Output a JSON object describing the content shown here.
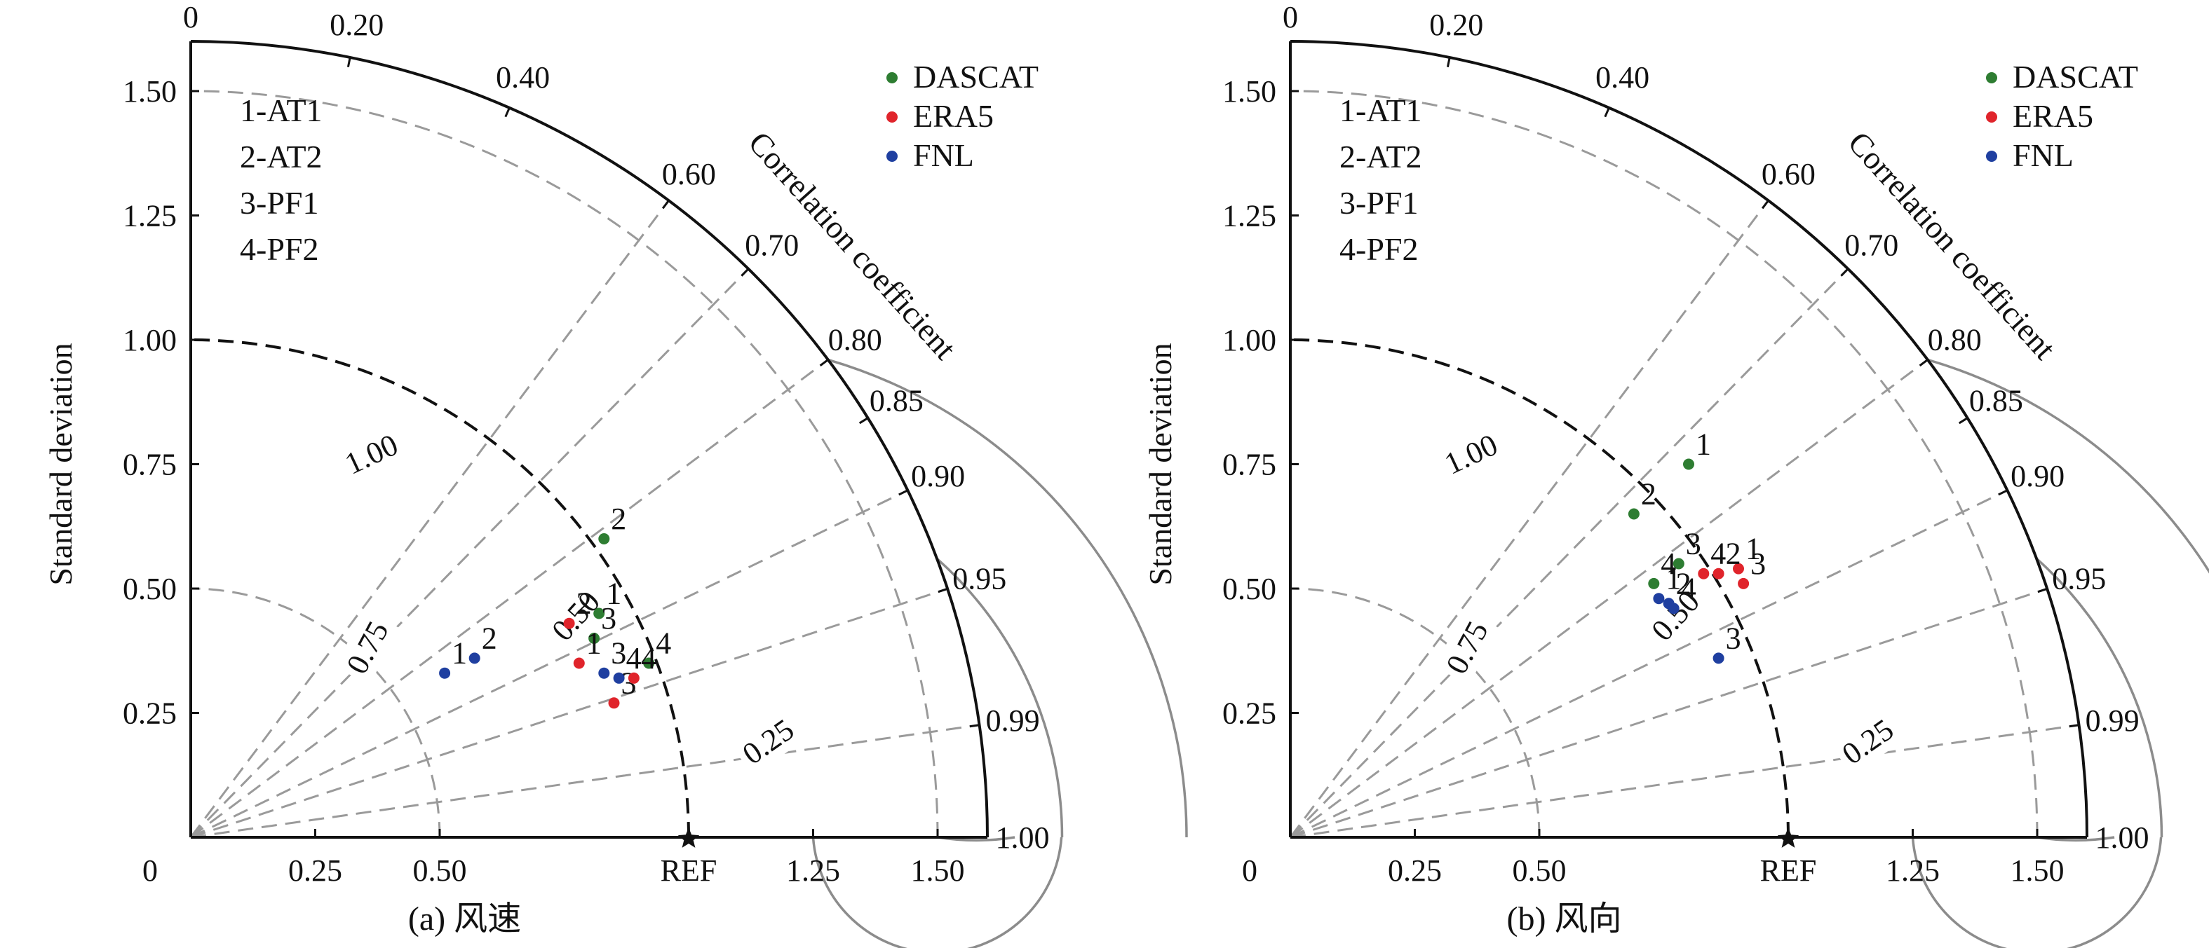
{
  "figure": {
    "legend": [
      {
        "name": "DASCAT",
        "color": "#2e7d32"
      },
      {
        "name": "ERA5",
        "color": "#e0242b"
      },
      {
        "name": "FNL",
        "color": "#1f3fa0"
      }
    ],
    "key": [
      "1-AT1",
      "2-AT2",
      "3-PF1",
      "4-PF2"
    ]
  },
  "chart_data": [
    {
      "type": "scatter",
      "subtype": "taylor_diagram",
      "caption": "(a) 风速",
      "ylabel": "Standard deviation",
      "arc_label": "Correlation coefficient",
      "ref_label": "REF",
      "ref_std": 1.0,
      "std_range": [
        0,
        1.6
      ],
      "std_ticks": [
        "0",
        "0.25",
        "0.50",
        "0.75",
        "1.00",
        "1.25",
        "1.50"
      ],
      "x_ticks": [
        "0",
        "0.25",
        "0.50",
        "REF",
        "1.25",
        "1.50"
      ],
      "y_ticks": [
        "0.25",
        "0.50",
        "0.75",
        "1.00",
        "1.25",
        "1.50"
      ],
      "corr_ticks": [
        "0",
        "0.20",
        "0.40",
        "0.60",
        "0.70",
        "0.80",
        "0.85",
        "0.90",
        "0.95",
        "0.99",
        "1.00"
      ],
      "rms_ticks": [
        "0.25",
        "0.50",
        "0.75",
        "1.00"
      ],
      "series": [
        {
          "name": "DASCAT",
          "points": [
            {
              "label": "1",
              "x": 0.82,
              "y": 0.45
            },
            {
              "label": "2",
              "x": 0.83,
              "y": 0.6
            },
            {
              "label": "3",
              "x": 0.81,
              "y": 0.4
            },
            {
              "label": "4",
              "x": 0.92,
              "y": 0.35
            }
          ]
        },
        {
          "name": "ERA5",
          "points": [
            {
              "label": "1",
              "x": 0.78,
              "y": 0.35
            },
            {
              "label": "2",
              "x": 0.76,
              "y": 0.43
            },
            {
              "label": "3",
              "x": 0.85,
              "y": 0.27
            },
            {
              "label": "4",
              "x": 0.89,
              "y": 0.32
            }
          ]
        },
        {
          "name": "FNL",
          "points": [
            {
              "label": "1",
              "x": 0.51,
              "y": 0.33
            },
            {
              "label": "2",
              "x": 0.57,
              "y": 0.36
            },
            {
              "label": "3",
              "x": 0.83,
              "y": 0.33
            },
            {
              "label": "4",
              "x": 0.86,
              "y": 0.32
            }
          ]
        }
      ]
    },
    {
      "type": "scatter",
      "subtype": "taylor_diagram",
      "caption": "(b) 风向",
      "ylabel": "Standard deviation",
      "arc_label": "Correlation coefficient",
      "ref_label": "REF",
      "ref_std": 1.0,
      "std_range": [
        0,
        1.6
      ],
      "std_ticks": [
        "0",
        "0.25",
        "0.50",
        "0.75",
        "1.00",
        "1.25",
        "1.50"
      ],
      "x_ticks": [
        "0",
        "0.25",
        "0.50",
        "REF",
        "1.25",
        "1.50"
      ],
      "y_ticks": [
        "0.25",
        "0.50",
        "0.75",
        "1.00",
        "1.25",
        "1.50"
      ],
      "corr_ticks": [
        "0",
        "0.20",
        "0.40",
        "0.60",
        "0.70",
        "0.80",
        "0.85",
        "0.90",
        "0.95",
        "0.99",
        "1.00"
      ],
      "rms_ticks": [
        "0.25",
        "0.50",
        "0.75",
        "1.00"
      ],
      "series": [
        {
          "name": "DASCAT",
          "points": [
            {
              "label": "1",
              "x": 0.8,
              "y": 0.75
            },
            {
              "label": "2",
              "x": 0.69,
              "y": 0.65
            },
            {
              "label": "3",
              "x": 0.78,
              "y": 0.55
            },
            {
              "label": "4",
              "x": 0.73,
              "y": 0.51
            }
          ]
        },
        {
          "name": "ERA5",
          "points": [
            {
              "label": "1",
              "x": 0.9,
              "y": 0.54
            },
            {
              "label": "2",
              "x": 0.86,
              "y": 0.53
            },
            {
              "label": "3",
              "x": 0.91,
              "y": 0.51
            },
            {
              "label": "4",
              "x": 0.83,
              "y": 0.53
            }
          ]
        },
        {
          "name": "FNL",
          "points": [
            {
              "label": "1",
              "x": 0.74,
              "y": 0.48
            },
            {
              "label": "2",
              "x": 0.76,
              "y": 0.47
            },
            {
              "label": "3",
              "x": 0.86,
              "y": 0.36
            },
            {
              "label": "4",
              "x": 0.77,
              "y": 0.46
            }
          ]
        }
      ]
    }
  ]
}
